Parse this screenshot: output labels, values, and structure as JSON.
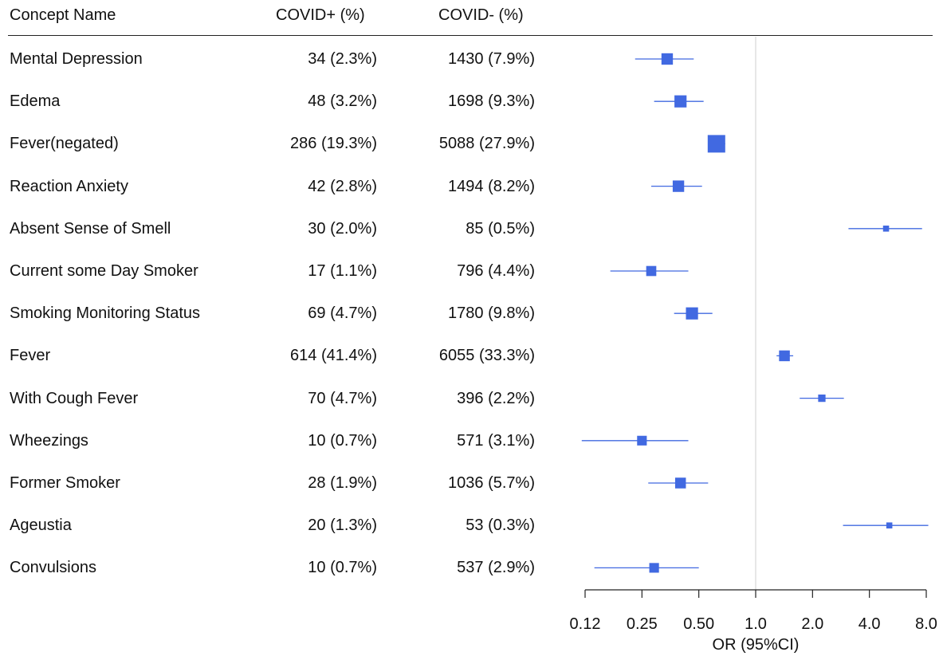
{
  "table": {
    "headers": {
      "name": "Concept Name",
      "covid_pos": "COVID+ (%)",
      "covid_neg": "COVID- (%)"
    },
    "rows": [
      {
        "name": "Mental Depression",
        "covid_pos": "34 (2.3%)",
        "covid_neg": "1430 (7.9%)"
      },
      {
        "name": "Edema",
        "covid_pos": "48 (3.2%)",
        "covid_neg": "1698 (9.3%)"
      },
      {
        "name": "Fever(negated)",
        "covid_pos": "286 (19.3%)",
        "covid_neg": "5088 (27.9%)"
      },
      {
        "name": "Reaction Anxiety",
        "covid_pos": "42 (2.8%)",
        "covid_neg": "1494 (8.2%)"
      },
      {
        "name": "Absent Sense of Smell",
        "covid_pos": "30 (2.0%)",
        "covid_neg": "85 (0.5%)"
      },
      {
        "name": "Current some Day Smoker",
        "covid_pos": "17 (1.1%)",
        "covid_neg": "796 (4.4%)"
      },
      {
        "name": "Smoking Monitoring Status",
        "covid_pos": "69 (4.7%)",
        "covid_neg": "1780 (9.8%)"
      },
      {
        "name": "Fever",
        "covid_pos": "614 (41.4%)",
        "covid_neg": "6055 (33.3%)"
      },
      {
        "name": "With Cough Fever",
        "covid_pos": "70 (4.7%)",
        "covid_neg": "396 (2.2%)"
      },
      {
        "name": "Wheezings",
        "covid_pos": "10 (0.7%)",
        "covid_neg": "571 (3.1%)"
      },
      {
        "name": "Former Smoker",
        "covid_pos": "28 (1.9%)",
        "covid_neg": "1036 (5.7%)"
      },
      {
        "name": "Ageustia",
        "covid_pos": "20 (1.3%)",
        "covid_neg": "53 (0.3%)"
      },
      {
        "name": "Convulsions",
        "covid_pos": "10 (0.7%)",
        "covid_neg": "537 (2.9%)"
      }
    ]
  },
  "chart_data": {
    "type": "scatter",
    "subtype": "forest-plot",
    "xlabel": "OR (95%CI)",
    "xscale": "log2",
    "xlim": [
      0.125,
      8.0
    ],
    "ticks": [
      0.125,
      0.25,
      0.5,
      1.0,
      2.0,
      4.0,
      8.0
    ],
    "tick_labels": [
      "0.12",
      "0.25",
      "0.50",
      "1.0",
      "2.0",
      "4.0",
      "8.0"
    ],
    "reference_line": 1.0,
    "marker_color": "#4169E1",
    "points": [
      {
        "label": "Mental Depression",
        "or": 0.34,
        "ci_low": 0.23,
        "ci_high": 0.47,
        "weight": 0.55
      },
      {
        "label": "Edema",
        "or": 0.4,
        "ci_low": 0.29,
        "ci_high": 0.53,
        "weight": 0.6
      },
      {
        "label": "Fever(negated)",
        "or": 0.62,
        "ci_low": 0.56,
        "ci_high": 0.69,
        "weight": 1.0
      },
      {
        "label": "Reaction Anxiety",
        "or": 0.39,
        "ci_low": 0.28,
        "ci_high": 0.52,
        "weight": 0.55
      },
      {
        "label": "Absent Sense of Smell",
        "or": 4.9,
        "ci_low": 3.1,
        "ci_high": 7.6,
        "weight": 0.15
      },
      {
        "label": "Current some Day Smoker",
        "or": 0.28,
        "ci_low": 0.17,
        "ci_high": 0.44,
        "weight": 0.45
      },
      {
        "label": "Smoking Monitoring Status",
        "or": 0.46,
        "ci_low": 0.37,
        "ci_high": 0.59,
        "weight": 0.6
      },
      {
        "label": "Fever",
        "or": 1.42,
        "ci_low": 1.29,
        "ci_high": 1.58,
        "weight": 0.5
      },
      {
        "label": "With Cough Fever",
        "or": 2.24,
        "ci_low": 1.71,
        "ci_high": 2.93,
        "weight": 0.25
      },
      {
        "label": "Wheezings",
        "or": 0.25,
        "ci_low": 0.12,
        "ci_high": 0.44,
        "weight": 0.42
      },
      {
        "label": "Former Smoker",
        "or": 0.4,
        "ci_low": 0.27,
        "ci_high": 0.56,
        "weight": 0.5
      },
      {
        "label": "Ageustia",
        "or": 5.1,
        "ci_low": 2.9,
        "ci_high": 8.2,
        "weight": 0.15
      },
      {
        "label": "Convulsions",
        "or": 0.29,
        "ci_low": 0.14,
        "ci_high": 0.5,
        "weight": 0.42
      }
    ]
  }
}
